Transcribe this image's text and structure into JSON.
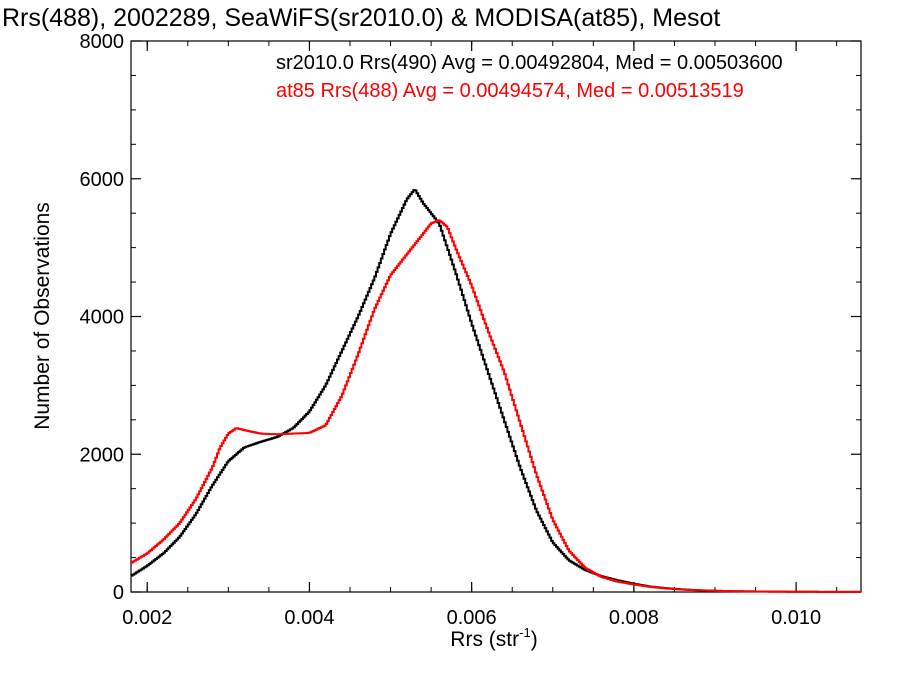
{
  "chart_data": {
    "type": "line",
    "title": "Rrs(488), 2002289, SeaWiFS(sr2010.0) & MODISA(at85), Mesot",
    "xlabel": "Rrs (str",
    "xlabel_sup": "-1",
    "xlabel_close": ")",
    "ylabel": "Number of Observations",
    "xlim": [
      0.0018,
      0.0108
    ],
    "ylim": [
      0,
      8000
    ],
    "x_ticks": [
      0.002,
      0.004,
      0.006,
      0.008,
      0.01
    ],
    "x_tick_labels": [
      "0.002",
      "0.004",
      "0.006",
      "0.008",
      "0.010"
    ],
    "y_ticks": [
      0,
      2000,
      4000,
      6000,
      8000
    ],
    "y_tick_labels": [
      "0",
      "2000",
      "4000",
      "6000",
      "8000"
    ],
    "grid": false,
    "legend_position": "top-right",
    "series": [
      {
        "name": "sr2010.0 Rrs(490) Avg = 0.00492804, Med = 0.00503600",
        "color": "#000000",
        "x": [
          0.0018,
          0.002,
          0.0022,
          0.0024,
          0.0026,
          0.0028,
          0.003,
          0.0032,
          0.0034,
          0.0036,
          0.0038,
          0.004,
          0.0042,
          0.0044,
          0.0046,
          0.0048,
          0.005,
          0.0052,
          0.0053,
          0.0054,
          0.0055,
          0.0056,
          0.0058,
          0.006,
          0.0062,
          0.0064,
          0.0066,
          0.0068,
          0.007,
          0.0072,
          0.0074,
          0.0076,
          0.0078,
          0.008,
          0.0082,
          0.0084,
          0.0086,
          0.0088,
          0.009,
          0.0092,
          0.0094,
          0.0096,
          0.0098,
          0.01,
          0.0102,
          0.0104,
          0.0106,
          0.0108
        ],
        "y": [
          230,
          380,
          560,
          800,
          1130,
          1540,
          1900,
          2100,
          2180,
          2250,
          2380,
          2620,
          3000,
          3500,
          4000,
          4550,
          5200,
          5700,
          5850,
          5650,
          5500,
          5350,
          4650,
          3900,
          3200,
          2500,
          1800,
          1180,
          720,
          460,
          320,
          230,
          170,
          120,
          80,
          55,
          38,
          26,
          18,
          12,
          9,
          7,
          5,
          4,
          3,
          2,
          2,
          1
        ]
      },
      {
        "name": "at85 Rrs(488) Avg = 0.00494574, Med = 0.00513519",
        "color": "#ff0000",
        "x": [
          0.0018,
          0.002,
          0.0022,
          0.0024,
          0.0026,
          0.0028,
          0.0029,
          0.003,
          0.0031,
          0.0032,
          0.0034,
          0.0036,
          0.0038,
          0.004,
          0.0042,
          0.0044,
          0.0046,
          0.0048,
          0.005,
          0.0052,
          0.0054,
          0.0055,
          0.0056,
          0.0057,
          0.0058,
          0.006,
          0.0062,
          0.0064,
          0.0066,
          0.0068,
          0.007,
          0.0072,
          0.0074,
          0.0076,
          0.0078,
          0.008,
          0.0082,
          0.0084,
          0.0086,
          0.0088,
          0.009,
          0.0092,
          0.0094,
          0.0096,
          0.0098,
          0.01,
          0.0102,
          0.0104,
          0.0106,
          0.0108
        ],
        "y": [
          420,
          560,
          760,
          1000,
          1350,
          1800,
          2100,
          2300,
          2380,
          2350,
          2300,
          2290,
          2300,
          2310,
          2420,
          2850,
          3450,
          4100,
          4600,
          4900,
          5200,
          5350,
          5400,
          5300,
          5000,
          4450,
          3800,
          3200,
          2450,
          1700,
          1050,
          600,
          350,
          220,
          150,
          110,
          75,
          50,
          35,
          24,
          17,
          12,
          9,
          7,
          5,
          4,
          3,
          2,
          2,
          1
        ]
      }
    ]
  }
}
